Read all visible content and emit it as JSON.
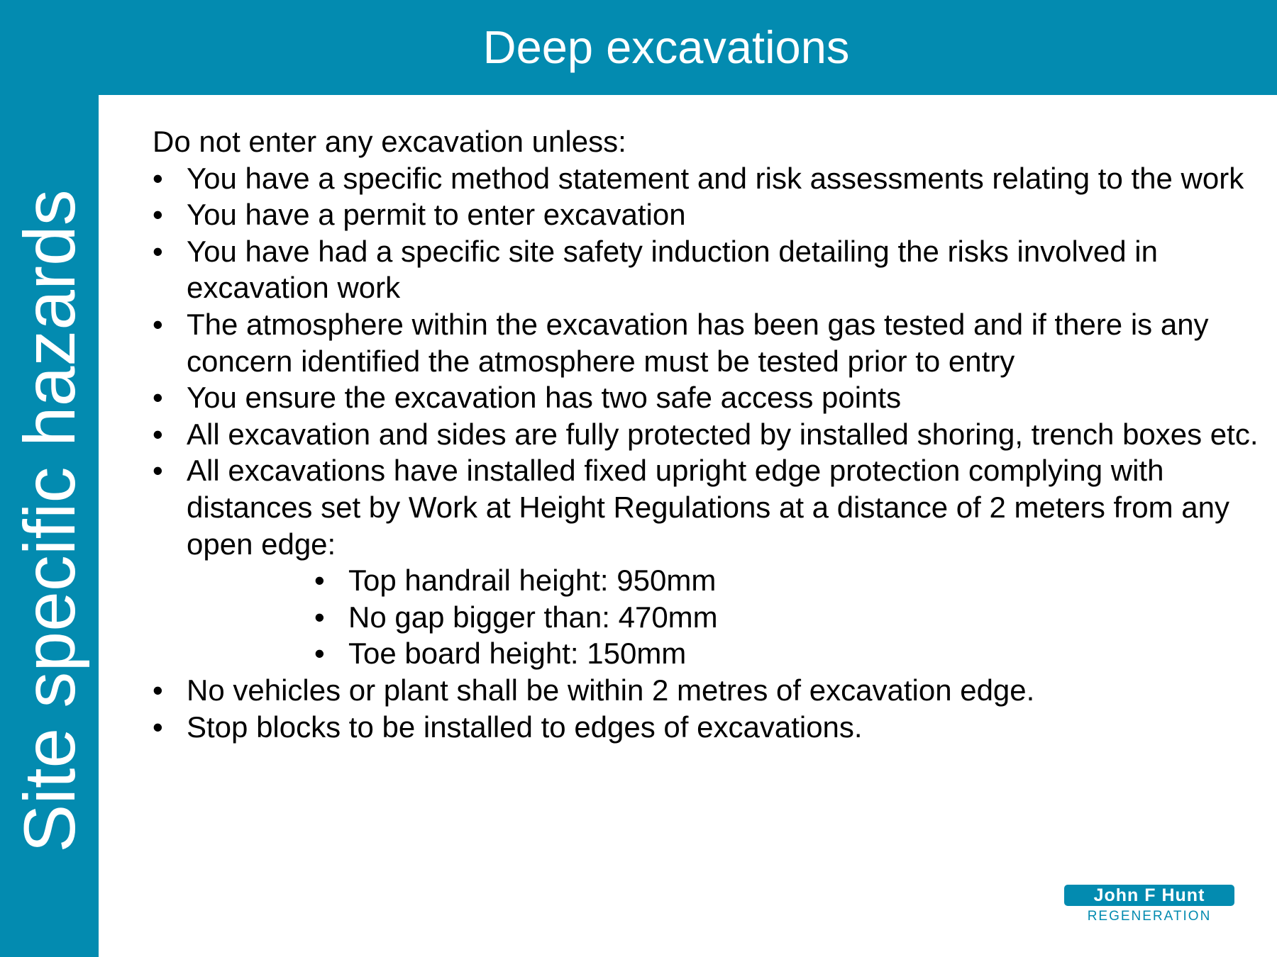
{
  "slide": {
    "title": "Deep excavations",
    "side_label": "Site specific hazards"
  },
  "content": {
    "intro": "Do not enter any excavation unless:",
    "bullets": [
      "You have a specific method statement and risk assessments relating to the work",
      "You have a permit to enter excavation",
      "You have had a specific site safety induction detailing the risks involved in excavation work",
      "The atmosphere within the excavation has been gas tested and if there is any concern identified the atmosphere must be tested prior to entry",
      "You ensure the excavation has two safe access points",
      "All excavation and sides are fully protected by installed shoring, trench boxes etc.",
      "All excavations have installed fixed upright edge protection complying with distances set by Work at Height Regulations at a distance of 2 meters from any open edge:",
      "No vehicles or plant shall be within 2 metres of excavation edge.",
      "Stop blocks to be installed to edges of excavations."
    ],
    "sub_bullets": [
      "Top handrail height: 950mm",
      "No gap bigger than: 470mm",
      "Toe board height: 150mm"
    ]
  },
  "logo": {
    "name": "John F Hunt",
    "tagline": "REGENERATION"
  },
  "colors": {
    "brand_blue": "#038bb0",
    "text": "#000000",
    "background": "#ffffff"
  }
}
